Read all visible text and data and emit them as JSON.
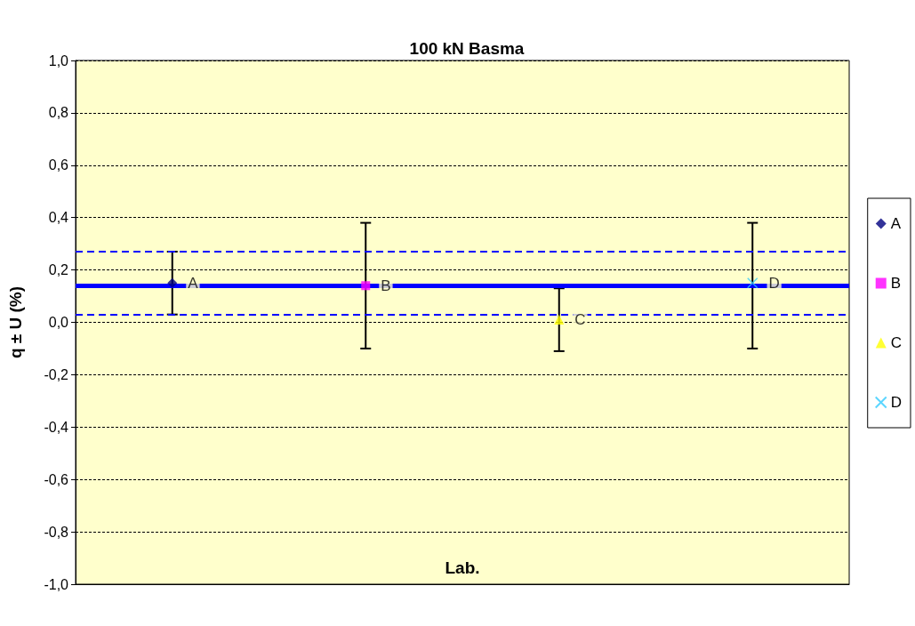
{
  "chart_data": {
    "type": "scatter",
    "title": "100 kN Basma",
    "xlabel": "Lab.",
    "ylabel": "q ± U (%)",
    "categories": [
      null,
      null,
      null,
      null
    ],
    "series": [
      {
        "name": "A",
        "color": "#000080",
        "marker": "diamond",
        "values": [
          0.15,
          null,
          null,
          null
        ],
        "errors": [
          [
            0.03,
            0.27
          ],
          null,
          null,
          null
        ]
      },
      {
        "name": "B",
        "color": "#ff00ff",
        "marker": "square",
        "values": [
          null,
          0.14,
          null,
          null
        ],
        "errors": [
          null,
          [
            -0.1,
            0.38
          ],
          null,
          null
        ]
      },
      {
        "name": "C",
        "color": "#ffff00",
        "marker": "triangle",
        "values": [
          null,
          null,
          0.01,
          null
        ],
        "errors": [
          null,
          null,
          [
            -0.11,
            0.13
          ],
          null
        ]
      },
      {
        "name": "D",
        "color": "#33ccff",
        "marker": "cross",
        "values": [
          null,
          null,
          null,
          0.15
        ],
        "errors": [
          null,
          null,
          null,
          [
            -0.1,
            0.38
          ]
        ]
      }
    ],
    "ylim": [
      -1.0,
      1.0
    ],
    "yticks": [
      {
        "value": -1.0,
        "label": "-1,0"
      },
      {
        "value": -0.8,
        "label": "-0,8"
      },
      {
        "value": -0.6,
        "label": "-0,6"
      },
      {
        "value": -0.4,
        "label": "-0,4"
      },
      {
        "value": -0.2,
        "label": "-0,2"
      },
      {
        "value": 0.0,
        "label": "0,0"
      },
      {
        "value": 0.2,
        "label": "0,2"
      },
      {
        "value": 0.4,
        "label": "0,4"
      },
      {
        "value": 0.6,
        "label": "0,6"
      },
      {
        "value": 0.8,
        "label": "0,8"
      },
      {
        "value": 1.0,
        "label": "1,0"
      }
    ],
    "ref_lines": [
      {
        "axis": "y",
        "value": 0.14,
        "color": "#0000ff",
        "line_style": "solid"
      },
      {
        "axis": "y",
        "value": 0.27,
        "color": "#0000ff",
        "line_style": "dashed"
      },
      {
        "axis": "y",
        "value": 0.03,
        "color": "#0000ff",
        "line_style": "dashed"
      }
    ],
    "grid": "y",
    "legend": "right",
    "tick_labels": "y"
  }
}
